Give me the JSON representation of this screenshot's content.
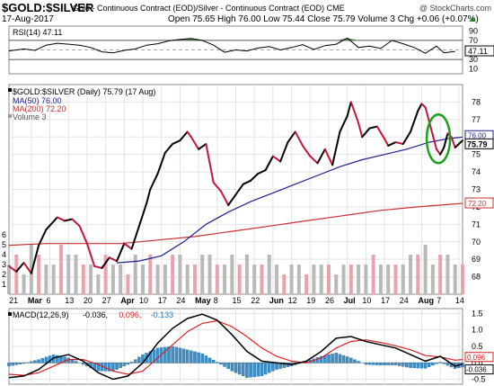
{
  "header": {
    "symbol": "$GOLD:$SILVER",
    "contract": "Gold - Continuous Contract (EOD)/Silver - Continuous Contract (EOD) CME",
    "watermark": "@ StockCharts.com",
    "date": "17-Aug-2017",
    "ohlc": "Open 75.65 High 76.00 Low 75.44 Close 75.79 Volume 3 Chg +0.06 (+0.07%)",
    "chg_arrow": "▲"
  },
  "chart_data": [
    {
      "panel": "rsi",
      "type": "line",
      "legend": "RSI(14) 47.11",
      "ylim": [
        0,
        100
      ],
      "yticks": [
        10,
        30,
        50,
        70,
        90
      ],
      "ref_lines": [
        30,
        70
      ],
      "last_label": "47.11",
      "color": "#000000",
      "fill_above_70": "#3b7a3b",
      "series": [
        {
          "x": [
            0,
            4,
            7,
            10,
            13,
            16,
            19,
            22,
            25,
            28,
            31,
            34,
            37,
            40,
            43,
            46,
            49,
            52,
            55,
            58,
            61,
            64,
            67,
            70,
            73,
            76,
            79,
            82,
            85,
            88,
            91,
            94,
            97,
            100,
            103,
            106,
            109,
            112,
            115,
            117,
            120
          ],
          "values": [
            48,
            52,
            49,
            60,
            64,
            62,
            60,
            55,
            46,
            44,
            49,
            52,
            60,
            63,
            69,
            72,
            74,
            70,
            60,
            45,
            50,
            48,
            54,
            57,
            50,
            55,
            61,
            51,
            59,
            62,
            75,
            55,
            58,
            53,
            70,
            63,
            55,
            43,
            58,
            44,
            47
          ]
        }
      ]
    },
    {
      "panel": "price",
      "type": "line",
      "legend": "$GOLD:$SILVER (Daily) 75.79 (17 Aug)",
      "ylim": [
        67,
        79
      ],
      "yticks": [
        68,
        69,
        70,
        71,
        72,
        73,
        74,
        75,
        76,
        77,
        78
      ],
      "ytick_labels": [
        "68",
        "69",
        "70",
        "71",
        "72",
        "73",
        "74",
        "75",
        "76",
        "77",
        "78"
      ],
      "x_labels": [
        "21",
        "Mar",
        "6",
        "13",
        "20",
        "27",
        "Apr",
        "10",
        "17",
        "24",
        "May",
        "8",
        "15",
        "22",
        "Jun",
        "12",
        "19",
        "26",
        "Jul",
        "10",
        "17",
        "24",
        "Aug",
        "7",
        "14"
      ],
      "x_label_idx": [
        1,
        6,
        11,
        16,
        21,
        26,
        31,
        36,
        41,
        46,
        51,
        56,
        61,
        66,
        71,
        76,
        81,
        86,
        91,
        96,
        101,
        106,
        111,
        116,
        121
      ],
      "bold_labels": [
        "Mar",
        "Apr",
        "May",
        "Jun",
        "Jul",
        "Aug"
      ],
      "price_up_color": "#000000",
      "price_down_color": "#c4163a",
      "ma50_label_color": "#1f1f8f",
      "ma200_label_color": "#c83030",
      "series": [
        {
          "name": "$GOLD:$SILVER",
          "x": [
            0,
            2,
            4,
            6,
            8,
            10,
            13,
            15,
            17,
            19,
            21,
            23,
            25,
            27,
            29,
            31,
            33,
            35,
            37,
            38,
            40,
            42,
            44,
            46,
            48,
            49,
            51,
            53,
            55,
            57,
            59,
            61,
            63,
            65,
            67,
            69,
            71,
            73,
            75,
            77,
            79,
            81,
            83,
            85,
            87,
            89,
            91,
            92,
            94,
            95,
            97,
            99,
            101,
            102,
            104,
            106,
            108,
            110,
            111,
            112,
            114,
            115,
            116,
            117,
            118,
            119,
            120,
            121,
            122
          ],
          "values": [
            68.6,
            68.3,
            68.8,
            68.2,
            69.8,
            70.7,
            71.4,
            71.2,
            71.3,
            70.9,
            69.9,
            68.6,
            68.5,
            69.1,
            68.9,
            69.9,
            69.6,
            70.9,
            72.2,
            73.0,
            73.9,
            75.1,
            75.6,
            75.8,
            76.3,
            76.0,
            75.3,
            75.6,
            73.4,
            72.9,
            72.1,
            72.7,
            73.3,
            73.5,
            73.9,
            74.1,
            74.9,
            74.6,
            75.7,
            76.3,
            75.5,
            74.9,
            74.5,
            75.3,
            74.4,
            76.3,
            77.2,
            78.0,
            76.8,
            76.0,
            76.5,
            76.6,
            75.9,
            75.5,
            75.7,
            75.6,
            76.3,
            77.5,
            77.9,
            77.7,
            76.1,
            75.3,
            75.0,
            75.4,
            76.2,
            76.0,
            75.4,
            75.6,
            75.8
          ]
        },
        {
          "name": "MA(50) 76.00",
          "x": [
            29,
            35,
            41,
            47,
            53,
            59,
            65,
            71,
            77,
            83,
            89,
            95,
            101,
            107,
            113,
            118,
            122
          ],
          "values": [
            68.8,
            68.9,
            69.2,
            70.0,
            71.0,
            71.7,
            72.3,
            72.8,
            73.3,
            73.8,
            74.3,
            74.7,
            75.0,
            75.3,
            75.7,
            75.9,
            76.0
          ]
        },
        {
          "name": "MA(200) 72.20",
          "x": [
            0,
            10,
            20,
            30,
            40,
            50,
            60,
            70,
            80,
            90,
            100,
            110,
            122
          ],
          "values": [
            69.8,
            69.9,
            69.9,
            69.9,
            70.1,
            70.3,
            70.6,
            70.9,
            71.2,
            71.5,
            71.8,
            72.0,
            72.2
          ]
        },
        {
          "name": "Volume 3",
          "x": [
            0,
            2,
            4,
            6,
            8,
            10,
            12,
            14,
            16,
            18,
            20,
            22,
            24,
            26,
            28,
            30,
            32,
            34,
            36,
            38,
            40,
            42,
            44,
            46,
            48,
            50,
            52,
            54,
            56,
            58,
            60,
            62,
            64,
            66,
            68,
            70,
            72,
            74,
            76,
            78,
            80,
            82,
            84,
            86,
            88,
            90,
            92,
            94,
            96,
            98,
            100,
            102,
            104,
            106,
            108,
            110,
            112,
            114,
            116,
            118,
            120,
            122
          ],
          "values": [
            3,
            4,
            2,
            5,
            4,
            3,
            3,
            5,
            4,
            4,
            3,
            3,
            2,
            4,
            3,
            3,
            2,
            4,
            3,
            4,
            3,
            3,
            4,
            4,
            3,
            3,
            4,
            4,
            3,
            3,
            4,
            3,
            4,
            3,
            3,
            4,
            3,
            2,
            3,
            3,
            2,
            3,
            3,
            3,
            2,
            3,
            3,
            3,
            3,
            4,
            3,
            3,
            3,
            3,
            4,
            4,
            5,
            3,
            4,
            4,
            3,
            3
          ]
        }
      ],
      "ma_labels": [
        "76.00",
        "75.79",
        "72.20"
      ],
      "volume_ticks": [
        1,
        2,
        3,
        4,
        5,
        6
      ]
    },
    {
      "panel": "macd",
      "type": "line",
      "legend_prefix": "MACD(12,26,9)",
      "legend_values": [
        "-0.036,",
        "0.096,",
        "-0.133"
      ],
      "legend_colors": [
        "#000000",
        "#d92020",
        "#1f7abf"
      ],
      "ylim": [
        -0.65,
        1.65
      ],
      "yticks": [
        -0.5,
        0.0,
        0.5,
        1.0,
        1.5
      ],
      "ytick_labels": [
        "-0.5",
        "0.0",
        "0.5",
        "1.0",
        "1.5"
      ],
      "last_labels": [
        "0.096",
        "-0.036"
      ],
      "x_labels": [
        "21",
        "Mar",
        "6",
        "13",
        "20",
        "27",
        "Apr",
        "10",
        "17",
        "24",
        "May",
        "8",
        "15",
        "22",
        "Jun",
        "12",
        "19",
        "26",
        "Jul",
        "10",
        "17",
        "24",
        "Aug",
        "7",
        "14"
      ],
      "series": [
        {
          "name": "MACD",
          "x": [
            0,
            4,
            8,
            12,
            16,
            20,
            24,
            28,
            32,
            36,
            40,
            44,
            48,
            52,
            56,
            60,
            64,
            68,
            72,
            76,
            80,
            84,
            88,
            92,
            96,
            100,
            104,
            108,
            112,
            116,
            120,
            122
          ],
          "values": [
            -0.45,
            -0.4,
            -0.2,
            0.15,
            0.25,
            0.05,
            -0.3,
            -0.5,
            -0.4,
            0.0,
            0.6,
            1.05,
            1.35,
            1.48,
            1.3,
            0.85,
            0.35,
            0.05,
            0.0,
            -0.05,
            0.05,
            0.35,
            0.75,
            0.8,
            0.65,
            0.55,
            0.45,
            0.25,
            0.05,
            0.2,
            -0.1,
            -0.04
          ]
        },
        {
          "name": "Signal",
          "x": [
            0,
            4,
            8,
            12,
            16,
            20,
            24,
            28,
            32,
            36,
            40,
            44,
            48,
            52,
            56,
            60,
            64,
            68,
            72,
            76,
            80,
            84,
            88,
            92,
            96,
            100,
            104,
            108,
            112,
            116,
            120,
            122
          ],
          "values": [
            -0.35,
            -0.38,
            -0.3,
            -0.1,
            0.1,
            0.1,
            -0.05,
            -0.25,
            -0.35,
            -0.25,
            0.15,
            0.55,
            0.95,
            1.2,
            1.28,
            1.1,
            0.8,
            0.45,
            0.2,
            0.05,
            0.0,
            0.15,
            0.45,
            0.65,
            0.7,
            0.62,
            0.52,
            0.4,
            0.22,
            0.18,
            0.08,
            0.1
          ]
        },
        {
          "name": "Histogram",
          "x": [
            0,
            4,
            8,
            12,
            16,
            20,
            24,
            28,
            32,
            36,
            40,
            44,
            48,
            52,
            56,
            60,
            64,
            68,
            72,
            76,
            80,
            84,
            88,
            92,
            96,
            100,
            104,
            108,
            112,
            116,
            120,
            122
          ],
          "values": [
            -0.1,
            -0.02,
            0.1,
            0.25,
            0.15,
            -0.05,
            -0.25,
            -0.25,
            -0.05,
            0.25,
            0.45,
            0.5,
            0.4,
            0.28,
            0.02,
            -0.25,
            -0.45,
            -0.4,
            -0.2,
            -0.1,
            0.05,
            0.2,
            0.3,
            0.15,
            -0.05,
            -0.07,
            -0.07,
            -0.15,
            -0.17,
            0.02,
            -0.18,
            -0.13
          ]
        }
      ]
    }
  ]
}
